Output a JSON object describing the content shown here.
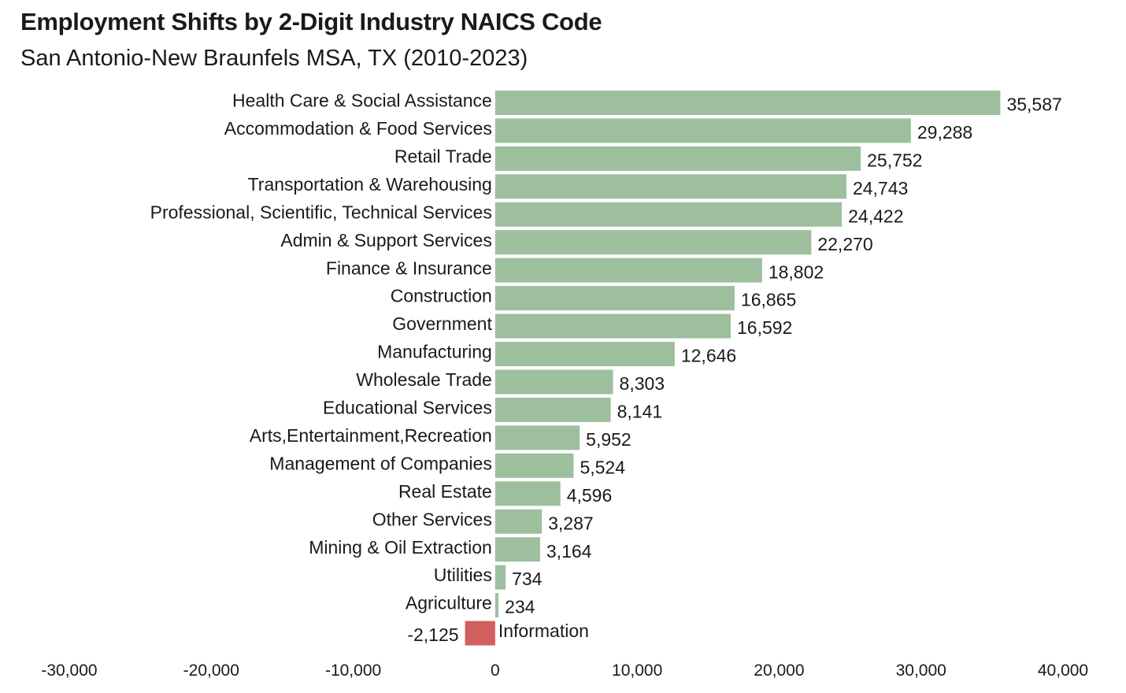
{
  "chart_data": {
    "type": "bar",
    "orientation": "horizontal",
    "title": "Employment Shifts by 2-Digit Industry NAICS Code",
    "subtitle": "San Antonio-New Braunfels MSA, TX (2010-2023)",
    "xlabel": "",
    "ylabel": "",
    "xlim": [
      -30000,
      40000
    ],
    "grid": false,
    "categories": [
      "Health Care & Social Assistance",
      "Accommodation & Food Services",
      "Retail Trade",
      "Transportation & Warehousing",
      "Professional, Scientific, Technical Services",
      "Admin & Support Services",
      "Finance & Insurance",
      "Construction",
      "Government",
      "Manufacturing",
      "Wholesale Trade",
      "Educational Services",
      "Arts,Entertainment,Recreation",
      "Management of Companies",
      "Real Estate",
      "Other Services",
      "Mining & Oil Extraction",
      "Utilities",
      "Agriculture",
      "Information"
    ],
    "values": [
      35587,
      29288,
      25752,
      24743,
      24422,
      22270,
      18802,
      16865,
      16592,
      12646,
      8303,
      8141,
      5952,
      5524,
      4596,
      3287,
      3164,
      734,
      234,
      -2125
    ],
    "value_labels": [
      "35,587",
      "29,288",
      "25,752",
      "24,743",
      "24,422",
      "22,270",
      "18,802",
      "16,865",
      "16,592",
      "12,646",
      "8,303",
      "8,141",
      "5,952",
      "5,524",
      "4,596",
      "3,287",
      "3,164",
      "734",
      "234",
      "-2,125"
    ],
    "x_ticks": [
      -30000,
      -20000,
      -10000,
      0,
      10000,
      20000,
      30000,
      40000
    ],
    "x_tick_labels": [
      "-30,000",
      "-20,000",
      "-10,000",
      "0",
      "10,000",
      "20,000",
      "30,000",
      "40,000"
    ],
    "colors": {
      "positive": "#9dbf9e",
      "negative": "#d1605e"
    }
  }
}
